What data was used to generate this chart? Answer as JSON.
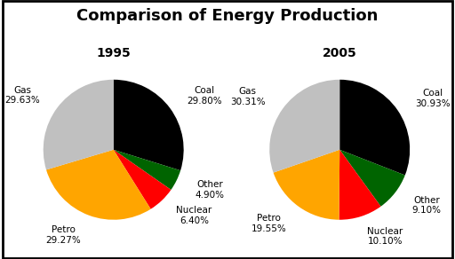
{
  "title": "Comparison of Energy Production",
  "title_fontsize": 13,
  "title_fontweight": "bold",
  "charts": [
    {
      "year": "1995",
      "labels": [
        "Coal",
        "Other",
        "Nuclear",
        "Petro",
        "Gas"
      ],
      "values": [
        29.8,
        4.9,
        6.4,
        29.27,
        29.63
      ],
      "colors": [
        "#000000",
        "#006400",
        "#ff0000",
        "#ffa500",
        "#c0c0c0"
      ],
      "startangle": 90,
      "label_texts": [
        "Coal\n29.80%",
        "Other\n4.90%",
        "Nuclear\n6.40%",
        "Petro\n29.27%",
        "Gas\n29.63%"
      ]
    },
    {
      "year": "2005",
      "labels": [
        "Coal",
        "Other",
        "Nuclear",
        "Petro",
        "Gas"
      ],
      "values": [
        30.93,
        9.1,
        10.1,
        19.55,
        30.31
      ],
      "colors": [
        "#000000",
        "#006400",
        "#ff0000",
        "#ffa500",
        "#c0c0c0"
      ],
      "startangle": 90,
      "label_texts": [
        "Coal\n30.93%",
        "Other\n9.10%",
        "Nuclear\n10.10%",
        "Petro\n19.55%",
        "Gas\n30.31%"
      ]
    }
  ],
  "background_color": "#ffffff",
  "border_color": "#000000",
  "label_fontsize": 7.5
}
